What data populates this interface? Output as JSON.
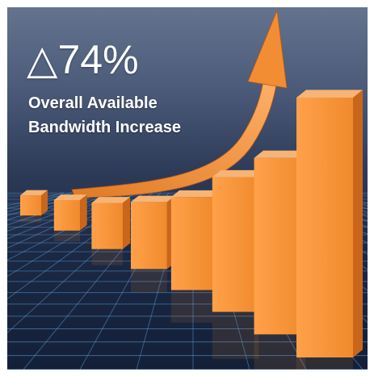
{
  "headline": "△74%",
  "caption": {
    "line1": "Overall Available",
    "line2": "Bandwidth Increase"
  },
  "colors": {
    "bar_front": "#f08a2c",
    "bar_side": "#c9661b",
    "bar_top": "#f6b476",
    "arrow": "#f08a30",
    "grid": "#5fa8e6",
    "background": "#2c3a57"
  },
  "chart_data": {
    "type": "bar",
    "categories": [
      "",
      "",
      "",
      "",
      "",
      "",
      "",
      ""
    ],
    "values": [
      2,
      4,
      7,
      11,
      16,
      24,
      32,
      48
    ],
    "trend_arrow": "up"
  }
}
